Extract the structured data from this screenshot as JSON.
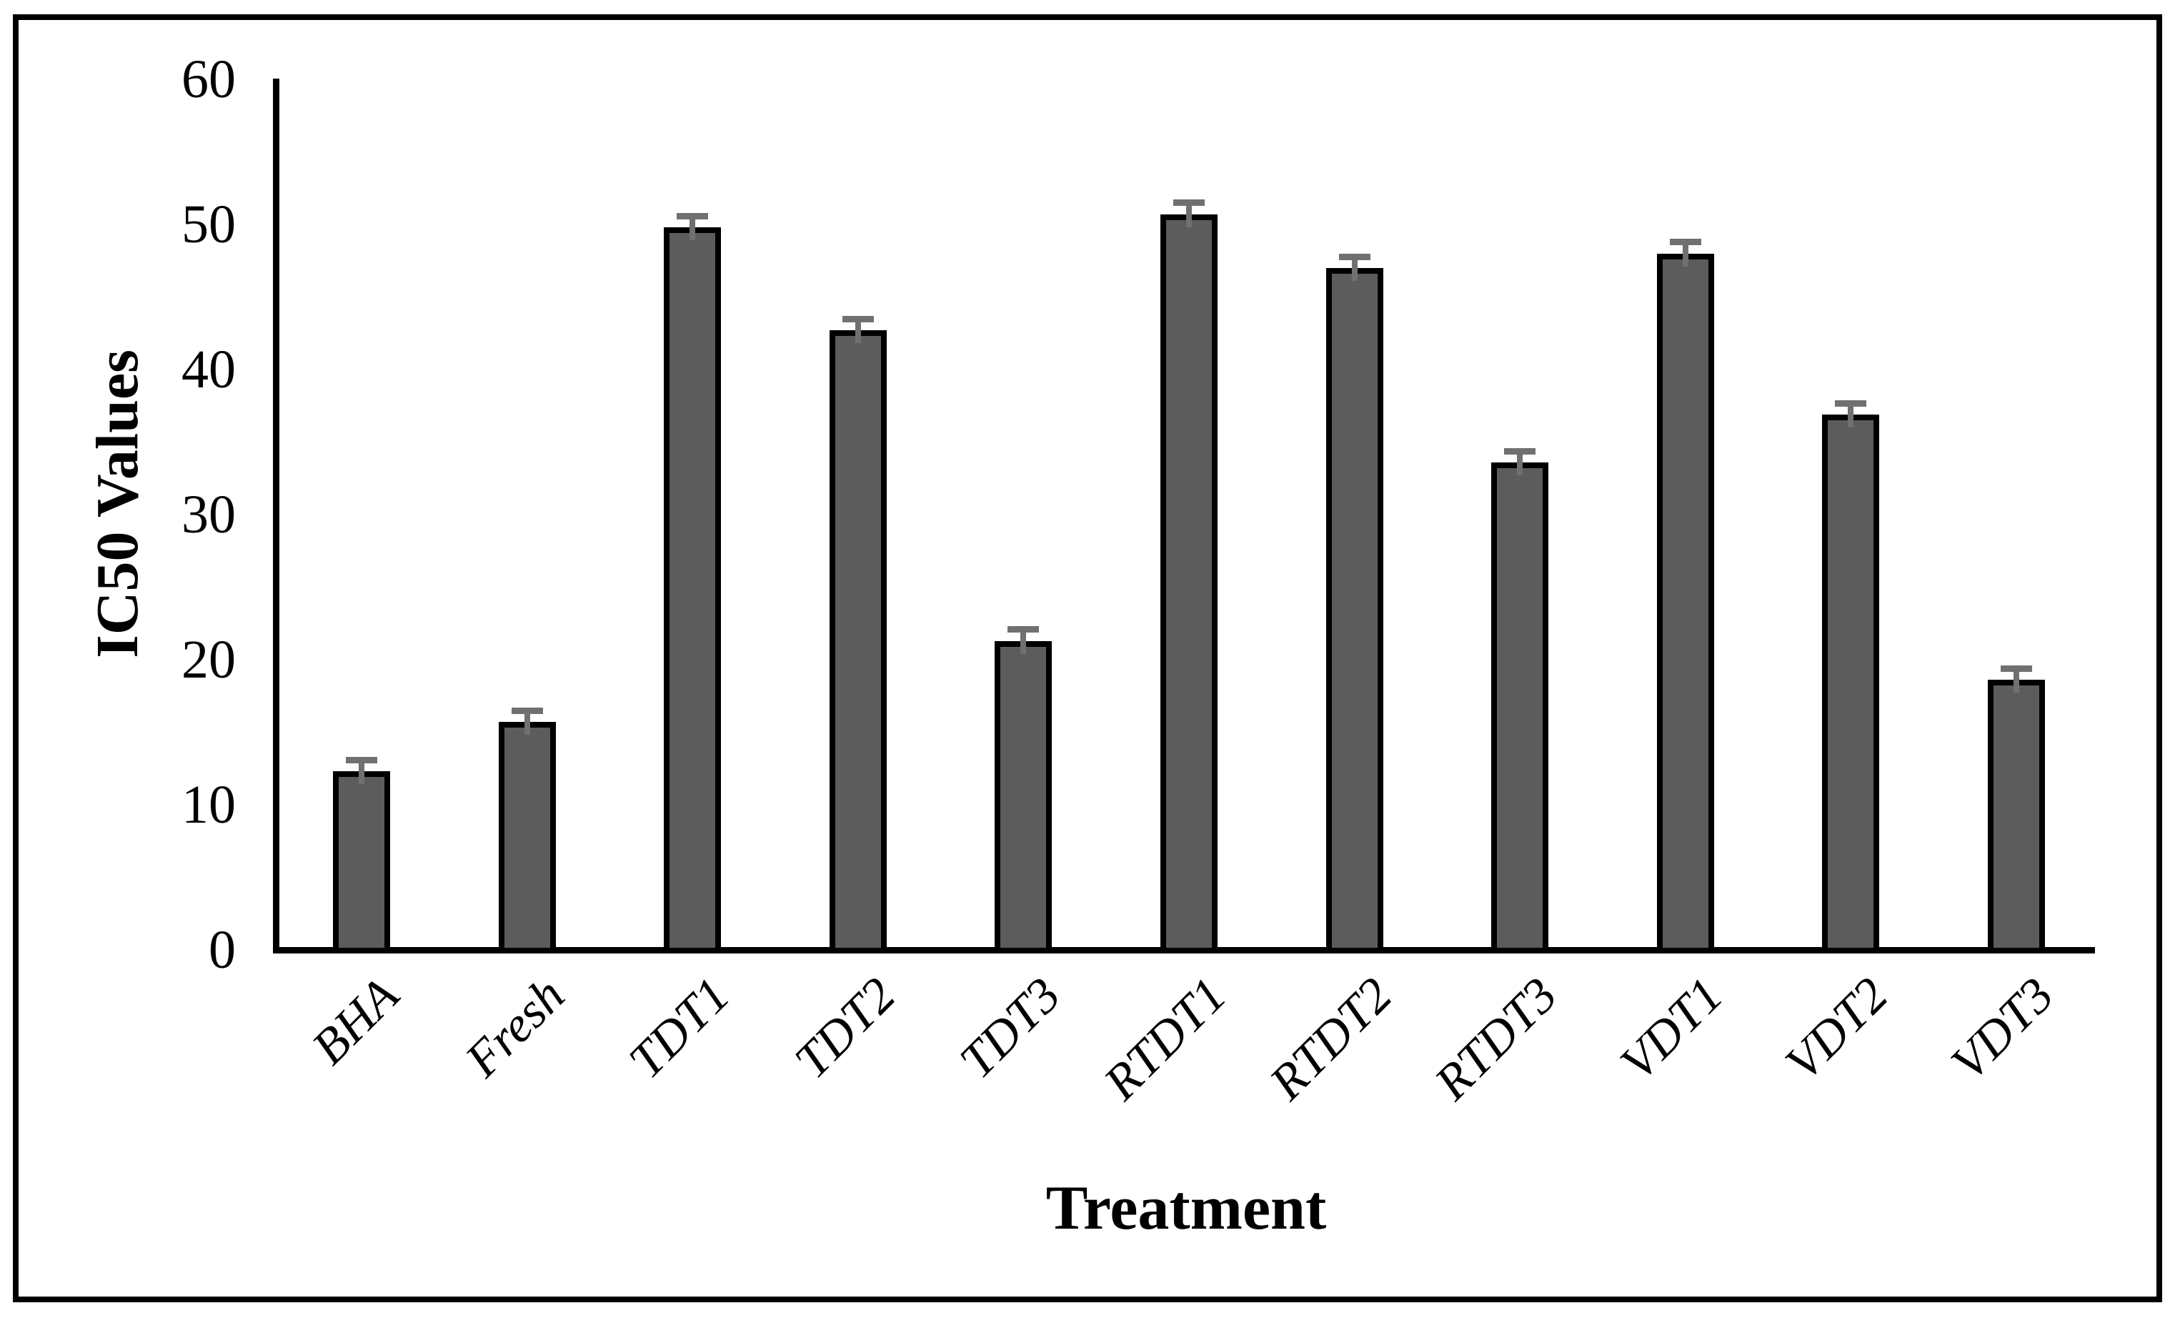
{
  "figure": {
    "background_color": "#ffffff",
    "border_color": "#000000"
  },
  "chart_data": {
    "type": "bar",
    "title": "",
    "categories": [
      "BHA",
      "Fresh",
      "TDT1",
      "TDT2",
      "TDT3",
      "RTDT1",
      "RTDT2",
      "RTDT3",
      "VDT1",
      "VDT2",
      "VDT3"
    ],
    "values": [
      12.3,
      15.7,
      49.8,
      42.7,
      21.3,
      50.7,
      47.0,
      33.6,
      48.0,
      36.9,
      18.6
    ],
    "error_bars_upper": [
      1.0,
      1.0,
      1.0,
      1.0,
      1.0,
      1.0,
      1.0,
      1.0,
      1.0,
      1.0,
      1.0
    ],
    "xlabel": "Treatment",
    "ylabel": "IC50 Values",
    "yticks": [
      0,
      10,
      20,
      30,
      40,
      50,
      60
    ],
    "ylim": [
      0,
      60
    ],
    "grid": false,
    "legend": "none",
    "bar_fill_color": "#5c5c5c",
    "bar_outline_color": "#000000",
    "error_bar_color": "#707070",
    "axis_color": "#000000",
    "xlabel_style": "bold",
    "category_label_style": "italic, rotated 45deg"
  }
}
